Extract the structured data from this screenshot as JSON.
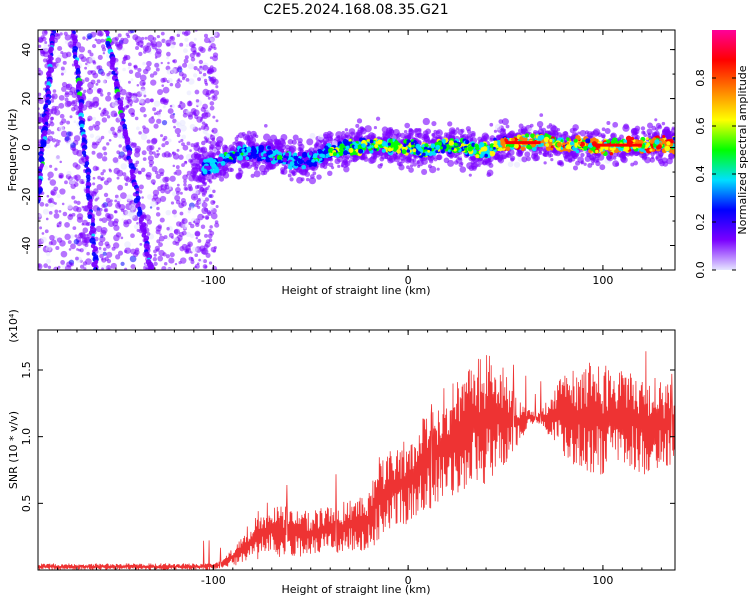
{
  "title": "C2E5.2024.168.08.35.G21",
  "chart_data": [
    {
      "type": "heatmap",
      "title": "C2E5.2024.168.08.35.G21",
      "xlabel": "Height of straight line (km)",
      "ylabel": "Frequency (Hz)",
      "xlim": [
        -190,
        137
      ],
      "ylim": [
        -50,
        48
      ],
      "xticks": [
        -100,
        0,
        100
      ],
      "xtick_labels": [
        "-100",
        "0",
        "100"
      ],
      "yticks": [
        -40,
        -20,
        0,
        20,
        40
      ],
      "ytick_labels": [
        "-40",
        "-20",
        "0",
        "20",
        "40"
      ],
      "colorbar": {
        "label": "Normalized spectral amplitude",
        "range": [
          0,
          1
        ],
        "ticks": [
          0.0,
          0.2,
          0.4,
          0.6,
          0.8
        ],
        "tick_labels": [
          "0.0",
          "0.2",
          "0.4",
          "0.6",
          "0.8"
        ],
        "colormap": [
          "#e6e6ff",
          "#7a00ff",
          "#0000ff",
          "#00e0ff",
          "#00ff00",
          "#ffff00",
          "#ff8000",
          "#ff0000",
          "#ff0099"
        ]
      },
      "ridge": [
        {
          "x": -100,
          "y": -8
        },
        {
          "x": -90,
          "y": -3
        },
        {
          "x": -80,
          "y": -2
        },
        {
          "x": -70,
          "y": -3
        },
        {
          "x": -60,
          "y": -5
        },
        {
          "x": -50,
          "y": -5
        },
        {
          "x": -40,
          "y": -2
        },
        {
          "x": -30,
          "y": 0
        },
        {
          "x": -20,
          "y": 1
        },
        {
          "x": -10,
          "y": 1
        },
        {
          "x": 0,
          "y": 0
        },
        {
          "x": 10,
          "y": -1
        },
        {
          "x": 20,
          "y": 1
        },
        {
          "x": 30,
          "y": 0
        },
        {
          "x": 40,
          "y": -1
        },
        {
          "x": 50,
          "y": 2
        },
        {
          "x": 60,
          "y": 2
        },
        {
          "x": 70,
          "y": 3
        },
        {
          "x": 80,
          "y": 1
        },
        {
          "x": 90,
          "y": 1
        },
        {
          "x": 100,
          "y": 0
        },
        {
          "x": 110,
          "y": 1
        },
        {
          "x": 120,
          "y": 1
        },
        {
          "x": 130,
          "y": 2
        },
        {
          "x": 137,
          "y": 1
        }
      ],
      "streaks": [
        {
          "x0": -182,
          "y0": 48,
          "x1": -190,
          "y1": -22
        },
        {
          "x0": -172,
          "y0": 48,
          "x1": -160,
          "y1": -50
        },
        {
          "x0": -155,
          "y0": 48,
          "x1": -132,
          "y1": -50
        }
      ]
    },
    {
      "type": "line",
      "xlabel": "Height of straight line (km)",
      "ylabel": "SNR (10 * v/v)",
      "y_multiplier": "(x10⁴)",
      "xlim": [
        -190,
        137
      ],
      "ylim": [
        0,
        1.8
      ],
      "xticks": [
        -100,
        0,
        100
      ],
      "xtick_labels": [
        "-100",
        "0",
        "100"
      ],
      "yticks": [
        0.5,
        1.0,
        1.5
      ],
      "ytick_labels": [
        "0.5",
        "1.0",
        "1.5"
      ],
      "color": "#ee3333",
      "envelope": [
        {
          "x": -190,
          "lo": 0.0,
          "hi": 0.05
        },
        {
          "x": -110,
          "lo": 0.0,
          "hi": 0.05
        },
        {
          "x": -100,
          "lo": 0.0,
          "hi": 0.05
        },
        {
          "x": -95,
          "lo": 0.02,
          "hi": 0.08
        },
        {
          "x": -88,
          "lo": 0.03,
          "hi": 0.2
        },
        {
          "x": -80,
          "lo": 0.05,
          "hi": 0.4
        },
        {
          "x": -70,
          "lo": 0.08,
          "hi": 0.55
        },
        {
          "x": -60,
          "lo": 0.1,
          "hi": 0.45
        },
        {
          "x": -50,
          "lo": 0.1,
          "hi": 0.45
        },
        {
          "x": -40,
          "lo": 0.12,
          "hi": 0.48
        },
        {
          "x": -30,
          "lo": 0.12,
          "hi": 0.55
        },
        {
          "x": -20,
          "lo": 0.15,
          "hi": 0.6
        },
        {
          "x": -15,
          "lo": 0.2,
          "hi": 0.9
        },
        {
          "x": -8,
          "lo": 0.3,
          "hi": 0.9
        },
        {
          "x": 0,
          "lo": 0.35,
          "hi": 1.0
        },
        {
          "x": 10,
          "lo": 0.45,
          "hi": 1.2
        },
        {
          "x": 20,
          "lo": 0.5,
          "hi": 1.4
        },
        {
          "x": 30,
          "lo": 0.6,
          "hi": 1.5
        },
        {
          "x": 40,
          "lo": 0.65,
          "hi": 1.65
        },
        {
          "x": 48,
          "lo": 0.75,
          "hi": 1.55
        },
        {
          "x": 55,
          "lo": 0.9,
          "hi": 1.3
        },
        {
          "x": 62,
          "lo": 1.08,
          "hi": 1.2
        },
        {
          "x": 68,
          "lo": 1.1,
          "hi": 1.18
        },
        {
          "x": 72,
          "lo": 1.0,
          "hi": 1.3
        },
        {
          "x": 80,
          "lo": 0.85,
          "hi": 1.5
        },
        {
          "x": 90,
          "lo": 0.7,
          "hi": 1.55
        },
        {
          "x": 100,
          "lo": 0.7,
          "hi": 1.55
        },
        {
          "x": 110,
          "lo": 0.75,
          "hi": 1.55
        },
        {
          "x": 120,
          "lo": 0.7,
          "hi": 1.5
        },
        {
          "x": 130,
          "lo": 0.75,
          "hi": 1.45
        },
        {
          "x": 137,
          "lo": 0.8,
          "hi": 1.4
        }
      ]
    }
  ]
}
